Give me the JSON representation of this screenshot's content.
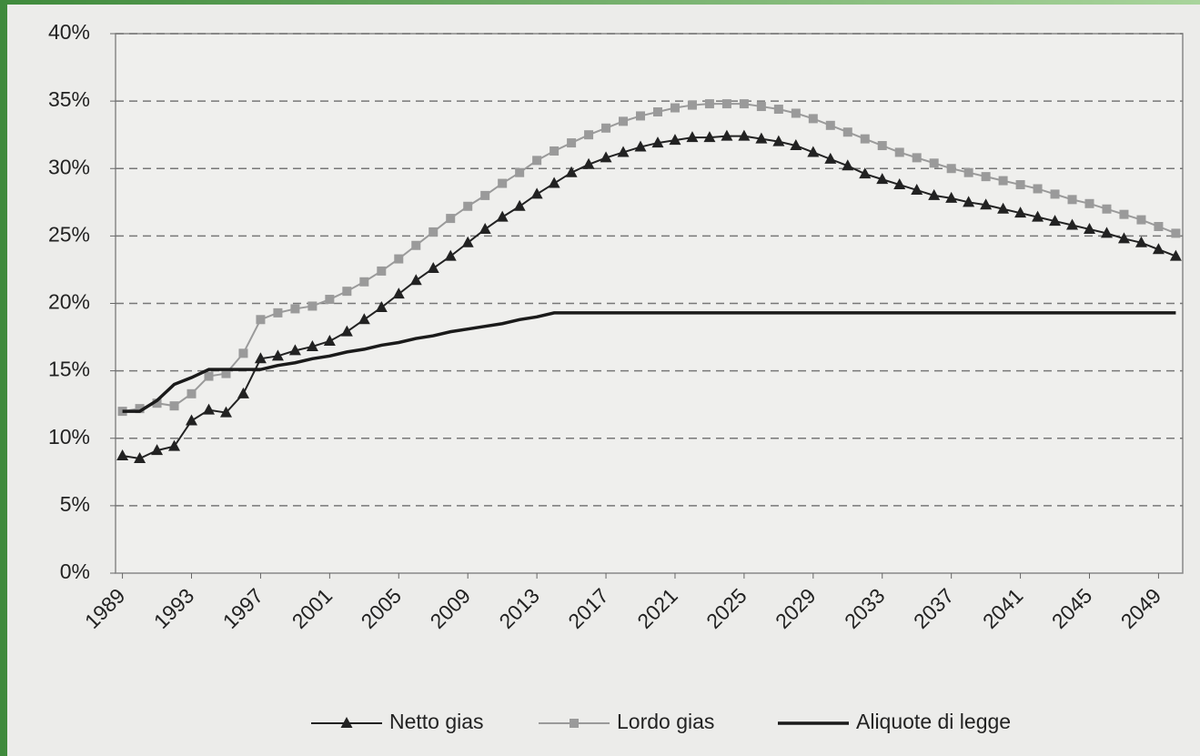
{
  "chart_data": {
    "type": "line",
    "x": [
      1989,
      1990,
      1991,
      1992,
      1993,
      1994,
      1995,
      1996,
      1997,
      1998,
      1999,
      2000,
      2001,
      2002,
      2003,
      2004,
      2005,
      2006,
      2007,
      2008,
      2009,
      2010,
      2011,
      2012,
      2013,
      2014,
      2015,
      2016,
      2017,
      2018,
      2019,
      2020,
      2021,
      2022,
      2023,
      2024,
      2025,
      2026,
      2027,
      2028,
      2029,
      2030,
      2031,
      2032,
      2033,
      2034,
      2035,
      2036,
      2037,
      2038,
      2039,
      2040,
      2041,
      2042,
      2043,
      2044,
      2045,
      2046,
      2047,
      2048,
      2049,
      2050
    ],
    "series": [
      {
        "name": "Netto gias",
        "color": "#222222",
        "marker": "triangle",
        "values": [
          8.7,
          8.5,
          9.1,
          9.4,
          11.3,
          12.1,
          11.9,
          13.3,
          15.9,
          16.1,
          16.5,
          16.8,
          17.2,
          17.9,
          18.8,
          19.7,
          20.7,
          21.7,
          22.6,
          23.5,
          24.5,
          25.5,
          26.4,
          27.2,
          28.1,
          28.9,
          29.7,
          30.3,
          30.8,
          31.2,
          31.6,
          31.9,
          32.1,
          32.3,
          32.3,
          32.4,
          32.4,
          32.2,
          32.0,
          31.7,
          31.2,
          30.7,
          30.2,
          29.6,
          29.2,
          28.8,
          28.4,
          28.0,
          27.8,
          27.5,
          27.3,
          27.0,
          26.7,
          26.4,
          26.1,
          25.8,
          25.5,
          25.2,
          24.8,
          24.5,
          24.0,
          23.5
        ]
      },
      {
        "name": "Lordo gias",
        "color": "#9a9a9a",
        "marker": "square",
        "values": [
          12.0,
          12.2,
          12.6,
          12.4,
          13.3,
          14.6,
          14.8,
          16.3,
          18.8,
          19.3,
          19.6,
          19.8,
          20.3,
          20.9,
          21.6,
          22.4,
          23.3,
          24.3,
          25.3,
          26.3,
          27.2,
          28.0,
          28.9,
          29.7,
          30.6,
          31.3,
          31.9,
          32.5,
          33.0,
          33.5,
          33.9,
          34.2,
          34.5,
          34.7,
          34.8,
          34.8,
          34.8,
          34.6,
          34.4,
          34.1,
          33.7,
          33.2,
          32.7,
          32.2,
          31.7,
          31.2,
          30.8,
          30.4,
          30.0,
          29.7,
          29.4,
          29.1,
          28.8,
          28.5,
          28.1,
          27.7,
          27.4,
          27.0,
          26.6,
          26.2,
          25.7,
          25.2
        ]
      },
      {
        "name": "Aliquote di legge",
        "color": "#1a1a1a",
        "marker": "none",
        "values": [
          12.0,
          12.0,
          12.8,
          14.0,
          14.5,
          15.1,
          15.1,
          15.1,
          15.1,
          15.4,
          15.6,
          15.9,
          16.1,
          16.4,
          16.6,
          16.9,
          17.1,
          17.4,
          17.6,
          17.9,
          18.1,
          18.3,
          18.5,
          18.8,
          19.0,
          19.3,
          19.3,
          19.3,
          19.3,
          19.3,
          19.3,
          19.3,
          19.3,
          19.3,
          19.3,
          19.3,
          19.3,
          19.3,
          19.3,
          19.3,
          19.3,
          19.3,
          19.3,
          19.3,
          19.3,
          19.3,
          19.3,
          19.3,
          19.3,
          19.3,
          19.3,
          19.3,
          19.3,
          19.3,
          19.3,
          19.3,
          19.3,
          19.3,
          19.3,
          19.3,
          19.3,
          19.3
        ]
      }
    ],
    "xlim": [
      1988.6,
      2050.4
    ],
    "xticks": [
      1989,
      1993,
      1997,
      2001,
      2005,
      2009,
      2013,
      2017,
      2021,
      2025,
      2029,
      2033,
      2037,
      2041,
      2045,
      2049
    ],
    "ylim": [
      0,
      40
    ],
    "yticks": [
      {
        "value": 0,
        "label": "0%"
      },
      {
        "value": 5,
        "label": "5%"
      },
      {
        "value": 10,
        "label": "10%"
      },
      {
        "value": 15,
        "label": "15%"
      },
      {
        "value": 20,
        "label": "20%"
      },
      {
        "value": 25,
        "label": "25%"
      },
      {
        "value": 30,
        "label": "30%"
      },
      {
        "value": 35,
        "label": "35%"
      },
      {
        "value": 40,
        "label": "40%"
      }
    ],
    "grid": true,
    "legend": "bottom"
  }
}
